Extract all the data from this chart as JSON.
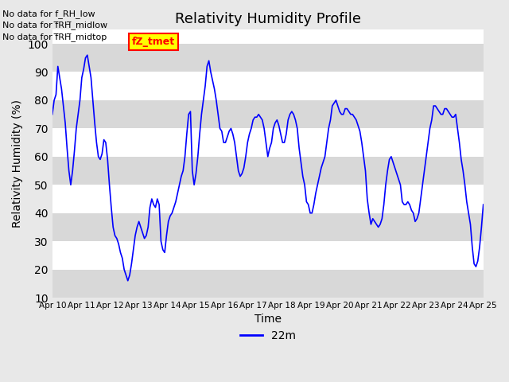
{
  "title": "Relativity Humidity Profile",
  "xlabel": "Time",
  "ylabel": "Relativity Humidity (%)",
  "ylim": [
    10,
    105
  ],
  "yticks": [
    10,
    20,
    30,
    40,
    50,
    60,
    70,
    80,
    90,
    100
  ],
  "line_color": "blue",
  "line_width": 1.2,
  "legend_label": "22m",
  "no_data_texts": [
    "No data for f_RH_low",
    "No data for f̅RH̅_midlow",
    "No data for f̅RH̅_midtop"
  ],
  "legend_box_color": "#ffff00",
  "legend_box_border": "red",
  "legend_box_text": "fZ_tmet",
  "legend_box_text_color": "red",
  "bg_color": "#e8e8e8",
  "plot_bg_color": "white",
  "stripe_color": "#d8d8d8",
  "tick_labels": [
    "Apr 10",
    "Apr 11",
    "Apr 12",
    "Apr 13",
    "Apr 14",
    "Apr 15",
    "Apr 16",
    "Apr 17",
    "Apr 18",
    "Apr 19",
    "Apr 20",
    "Apr 21",
    "Apr 22",
    "Apr 23",
    "Apr 24",
    "Apr 25"
  ],
  "y_values": [
    75,
    80,
    82,
    92,
    88,
    84,
    78,
    72,
    63,
    55,
    50,
    55,
    62,
    70,
    75,
    80,
    88,
    91,
    95,
    96,
    92,
    88,
    80,
    72,
    65,
    60,
    59,
    61,
    66,
    65,
    59,
    50,
    42,
    35,
    32,
    31,
    29,
    26,
    24,
    20,
    18,
    16,
    18,
    22,
    27,
    32,
    35,
    37,
    35,
    33,
    31,
    32,
    35,
    42,
    45,
    43,
    42,
    45,
    43,
    30,
    27,
    26,
    32,
    37,
    39,
    40,
    42,
    44,
    47,
    50,
    53,
    55,
    60,
    68,
    75,
    76,
    55,
    50,
    54,
    60,
    68,
    75,
    80,
    85,
    92,
    94,
    90,
    87,
    84,
    80,
    75,
    70,
    69,
    65,
    65,
    67,
    69,
    70,
    68,
    65,
    60,
    55,
    53,
    54,
    56,
    60,
    65,
    68,
    70,
    73,
    74,
    74,
    75,
    74,
    73,
    70,
    65,
    60,
    63,
    65,
    70,
    72,
    73,
    71,
    68,
    65,
    65,
    68,
    73,
    75,
    76,
    75,
    73,
    70,
    63,
    58,
    53,
    50,
    44,
    43,
    40,
    40,
    43,
    47,
    50,
    53,
    56,
    58,
    60,
    65,
    70,
    73,
    78,
    79,
    80,
    78,
    76,
    75,
    75,
    77,
    77,
    76,
    75,
    75,
    74,
    73,
    71,
    69,
    65,
    60,
    55,
    45,
    40,
    36,
    38,
    37,
    36,
    35,
    36,
    38,
    43,
    50,
    55,
    59,
    60,
    58,
    56,
    54,
    52,
    50,
    44,
    43,
    43,
    44,
    43,
    41,
    40,
    37,
    38,
    40,
    45,
    50,
    55,
    60,
    65,
    70,
    73,
    78,
    78,
    77,
    76,
    75,
    75,
    77,
    77,
    76,
    75,
    74,
    74,
    75,
    70,
    65,
    59,
    55,
    50,
    44,
    40,
    36,
    28,
    22,
    21,
    23,
    28,
    35,
    43
  ]
}
